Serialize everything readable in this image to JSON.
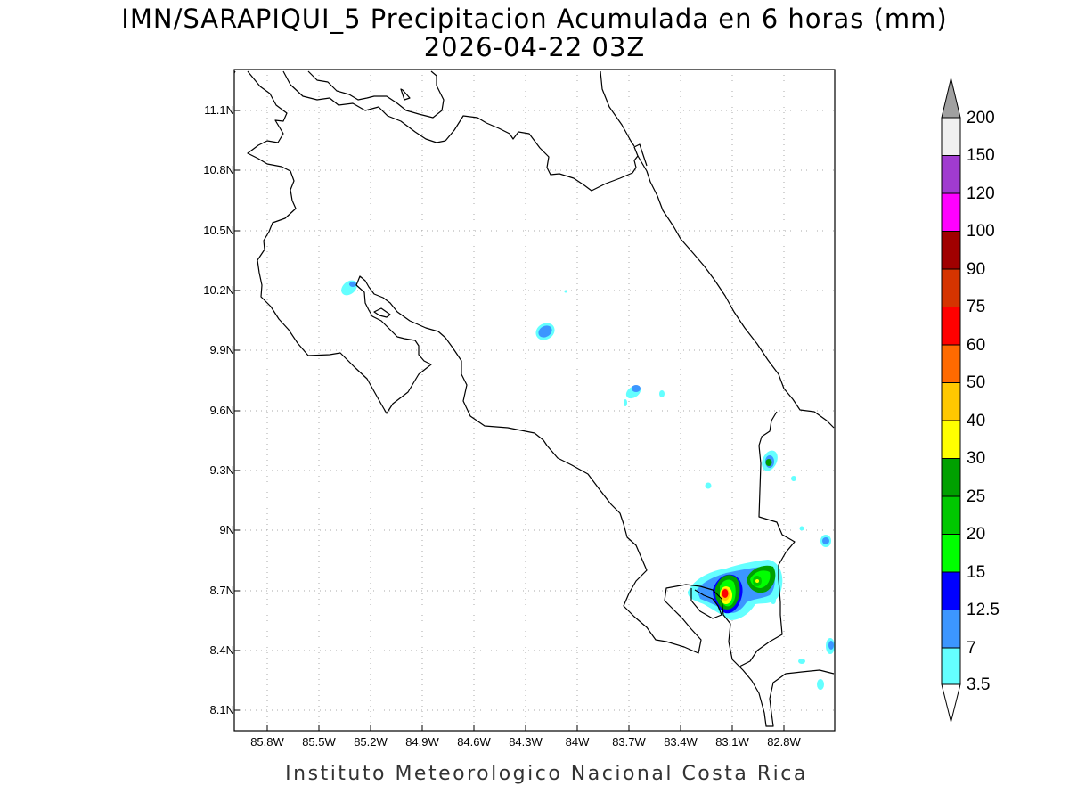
{
  "title": {
    "line1": "IMN/SARAPIQUI_5 Precipitacion Acumulada en 6 horas (mm)",
    "line2": "2026-04-22 03Z"
  },
  "footer": "Instituto Meteorologico Nacional Costa Rica",
  "map": {
    "lat_labels": [
      "11.1N",
      "10.8N",
      "10.5N",
      "10.2N",
      "9.9N",
      "9.6N",
      "9.3N",
      "9N",
      "8.7N",
      "8.4N",
      "8.1N"
    ],
    "lon_labels": [
      "85.8W",
      "85.5W",
      "85.2W",
      "84.9W",
      "84.6W",
      "84.3W",
      "84W",
      "83.7W",
      "83.4W",
      "83.1W",
      "82.8W"
    ],
    "grid": "dotted"
  },
  "colorbar": {
    "labels": [
      "200",
      "150",
      "120",
      "100",
      "90",
      "75",
      "60",
      "50",
      "40",
      "30",
      "25",
      "20",
      "15",
      "12.5",
      "7",
      "3.5"
    ],
    "colors": [
      "#f0f0f0",
      "#a03bd0",
      "#ff00ff",
      "#a00000",
      "#d53400",
      "#ff0000",
      "#ff6a00",
      "#ffc800",
      "#ffff00",
      "#00a000",
      "#00c800",
      "#00ff00",
      "#0000ff",
      "#3c96ff",
      "#64ffff"
    ],
    "top_arrow_color": "#a0a0a0",
    "bottom_arrow_color": "#ffffff"
  }
}
